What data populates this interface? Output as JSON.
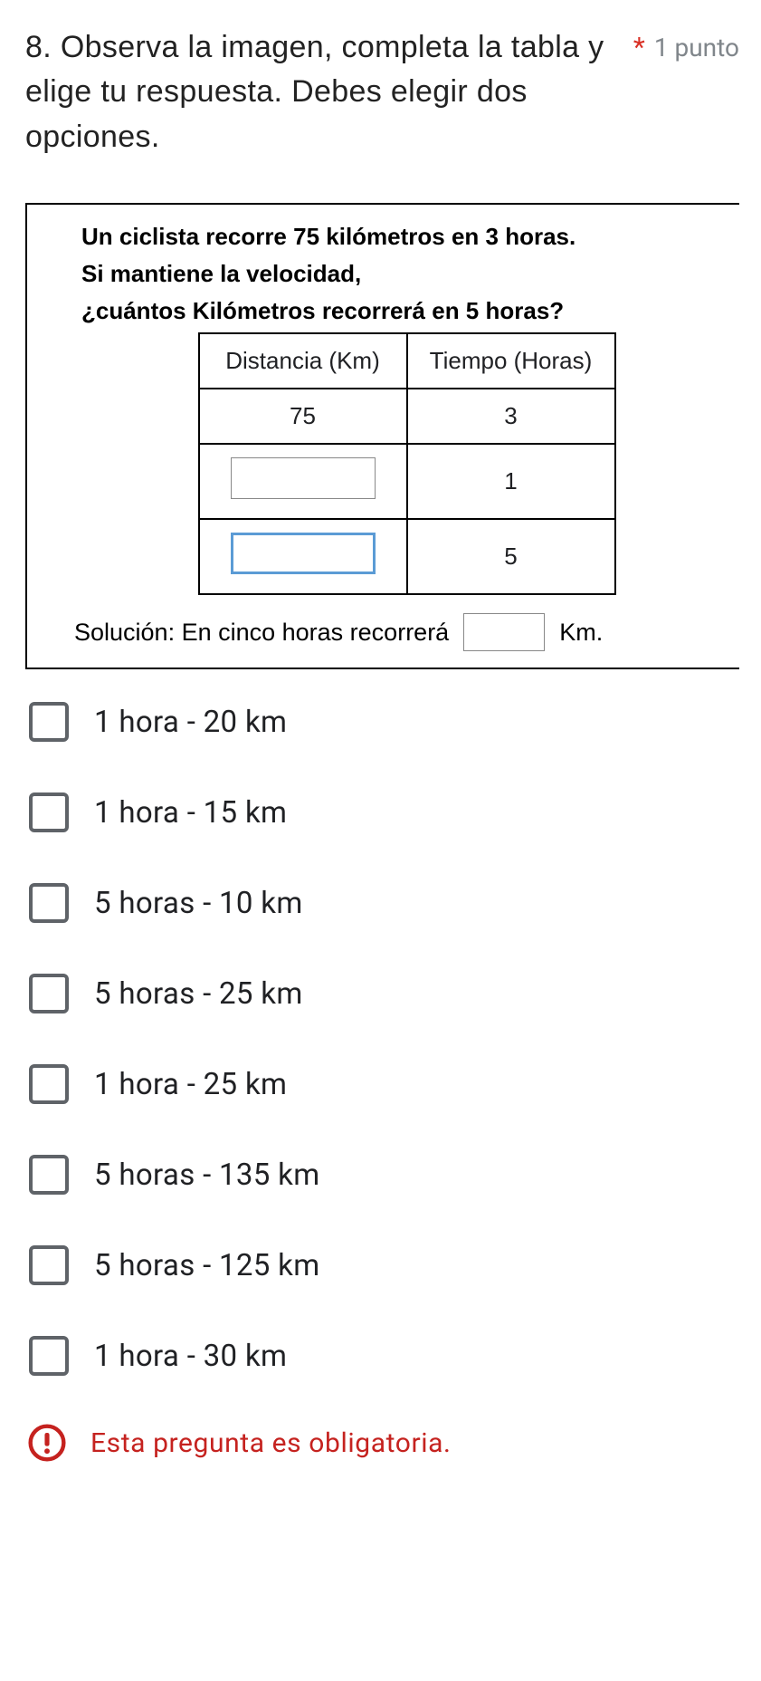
{
  "question": {
    "number_and_text": "8. Observa la imagen, completa la tabla y elige tu respuesta. Debes elegir dos opciones.",
    "required_marker": "*",
    "points_label": "1 punto"
  },
  "problem": {
    "line1": "Un ciclista recorre 75 kilómetros en 3 horas.",
    "line2": "Si mantiene la velocidad,",
    "line3": "¿cuántos Kilómetros recorrerá en 5 horas?",
    "table": {
      "header_distance": "Distancia (Km)",
      "header_time": "Tiempo (Horas)",
      "rows": [
        {
          "distance": "75",
          "time": "3",
          "distance_is_input": false
        },
        {
          "distance": "",
          "time": "1",
          "distance_is_input": true,
          "focused": false
        },
        {
          "distance": "",
          "time": "5",
          "distance_is_input": true,
          "focused": true
        }
      ]
    },
    "solution_prefix": "Solución: En cinco horas recorrerá",
    "solution_suffix": "Km."
  },
  "options": [
    "1 hora -  20 km",
    "1 hora  - 15  km",
    "5  horas  -  10  km",
    "5 horas  - 25 km",
    "1 hora   -  25 km",
    "5 horas  -  135 km",
    "5 horas  - 125 km",
    "1 hora  -  30  km"
  ],
  "required_message": "Esta pregunta es obligatoria.",
  "colors": {
    "required_red": "#d93025",
    "required_text_red": "#c5221f",
    "checkbox_border": "#5f6368",
    "input_focus": "#5b9bd5",
    "muted": "#80868b"
  }
}
